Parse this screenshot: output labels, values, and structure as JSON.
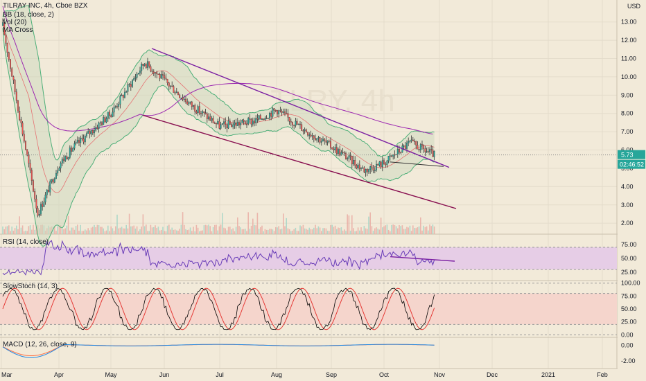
{
  "legend": {
    "title": "TILRAY INC, 4h, Cboe BZX",
    "bb": "BB (18, close, 2)",
    "vol": "Vol (20)",
    "ma_cross": "MA Cross"
  },
  "watermark": "TLRY, 4h",
  "currency": "USD",
  "last_price": "5.73",
  "countdown": "02:46:52",
  "panes": {
    "rsi": "RSI (14, close)",
    "stoch": "SlowStoch (14, 3)",
    "macd": "MACD (12, 26, close, 9)"
  },
  "colors": {
    "background": "#f2ead9",
    "candle_up": "#26a69a",
    "candle_down": "#ef5350",
    "bb": "#4caf78",
    "bb_fill": "#cfd8c0",
    "trendline": "#7b1fa2",
    "channel_lower": "#880e4f",
    "ma_long": "#9c27b0",
    "rsi_band": "#e6cde6",
    "rsi_line": "#673ab7",
    "stoch_k": "#000000",
    "stoch_d": "#e53935",
    "stoch_band": "#f5d5cc",
    "price_tag": "#26a69a",
    "countdown_tag": "#26a69a"
  },
  "chart_data": [
    {
      "type": "candlestick",
      "title": "TILRAY INC, 4h, Cboe BZX",
      "ylabel": "USD",
      "ylim": [
        1.4,
        14.2
      ],
      "y_ticks": [
        "13.00",
        "12.00",
        "11.00",
        "10.00",
        "9.00",
        "8.00",
        "7.00",
        "6.00",
        "5.00",
        "4.00",
        "3.00",
        "2.00"
      ],
      "x_ticks": [
        "Mar",
        "Apr",
        "May",
        "Jun",
        "Jul",
        "Aug",
        "Sep",
        "Oct",
        "Nov",
        "Dec",
        "2021",
        "Feb"
      ],
      "close_path": [
        {
          "x": "Mar",
          "y": 13.2
        },
        {
          "x": "Mar 20",
          "y": 2.5
        },
        {
          "x": "Apr",
          "y": 5.2
        },
        {
          "x": "Apr 10",
          "y": 6.2
        },
        {
          "x": "May",
          "y": 8.0
        },
        {
          "x": "May 20",
          "y": 10.8
        },
        {
          "x": "Jun",
          "y": 9.8
        },
        {
          "x": "Jun 15",
          "y": 8.5
        },
        {
          "x": "Jul",
          "y": 7.3
        },
        {
          "x": "Jul 20",
          "y": 7.6
        },
        {
          "x": "Aug",
          "y": 8.2
        },
        {
          "x": "Aug 15",
          "y": 7.2
        },
        {
          "x": "Sep",
          "y": 6.2
        },
        {
          "x": "Sep 20",
          "y": 4.9
        },
        {
          "x": "Oct",
          "y": 5.3
        },
        {
          "x": "Oct 15",
          "y": 6.4
        },
        {
          "x": "Oct 28",
          "y": 5.73
        }
      ],
      "last": 5.73
    },
    {
      "type": "line",
      "title": "RSI (14, close)",
      "y_ticks": [
        "75.00",
        "50.00",
        "25.00"
      ],
      "ylim": [
        10,
        90
      ],
      "band": [
        30,
        70
      ]
    },
    {
      "type": "line",
      "title": "SlowStoch (14, 3)",
      "y_ticks": [
        "100.00",
        "75.00",
        "50.00",
        "25.00",
        "0.00"
      ],
      "ylim": [
        -5,
        105
      ],
      "band": [
        20,
        80
      ]
    },
    {
      "type": "line",
      "title": "MACD (12, 26, close, 9)",
      "y_ticks": [
        "0.00",
        "-2.00"
      ],
      "ylim": [
        -3,
        1
      ]
    }
  ]
}
